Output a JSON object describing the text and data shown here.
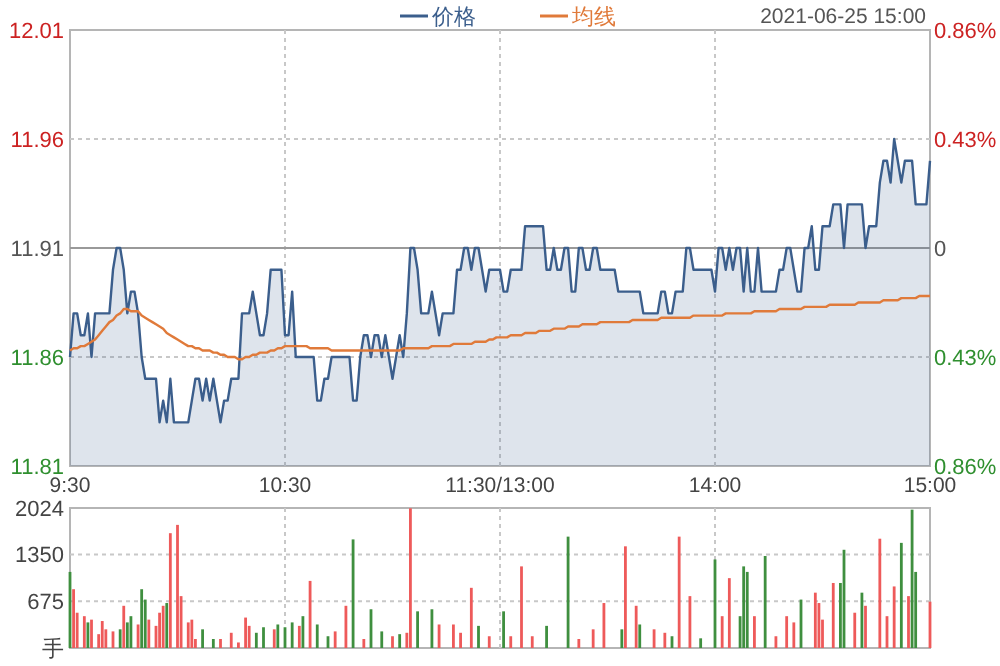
{
  "chart_data": [
    {
      "type": "line",
      "legend": "top",
      "grid": true,
      "categories": [
        "9:30",
        null,
        null,
        null,
        null,
        null,
        null,
        null,
        null,
        null,
        null,
        null,
        null,
        null,
        null,
        null,
        null,
        null,
        null,
        null,
        null,
        null,
        null,
        null,
        null,
        null,
        null,
        null,
        null,
        null,
        null,
        null,
        null,
        null,
        null,
        null,
        null,
        null,
        null,
        null,
        null,
        null,
        null,
        null,
        null,
        null,
        null,
        null,
        null,
        null,
        null,
        null,
        null,
        null,
        null,
        null,
        null,
        null,
        null,
        null,
        "10:30",
        null,
        null,
        null,
        null,
        null,
        null,
        null,
        null,
        null,
        null,
        null,
        null,
        null,
        null,
        null,
        null,
        null,
        null,
        null,
        null,
        null,
        null,
        null,
        null,
        null,
        null,
        null,
        null,
        null,
        null,
        null,
        null,
        null,
        null,
        null,
        null,
        null,
        null,
        null,
        null,
        null,
        null,
        null,
        null,
        null,
        null,
        null,
        null,
        null,
        null,
        null,
        null,
        null,
        null,
        null,
        null,
        null,
        null,
        null,
        "11:30/13:00",
        null,
        null,
        null,
        null,
        null,
        null,
        null,
        null,
        null,
        null,
        null,
        null,
        null,
        null,
        null,
        null,
        null,
        null,
        null,
        null,
        null,
        null,
        null,
        null,
        null,
        null,
        null,
        null,
        null,
        null,
        null,
        null,
        null,
        null,
        null,
        null,
        null,
        null,
        null,
        null,
        null,
        null,
        null,
        null,
        null,
        null,
        null,
        null,
        null,
        null,
        null,
        null,
        null,
        null,
        null,
        null,
        null,
        null,
        null,
        "14:00",
        null,
        null,
        null,
        null,
        null,
        null,
        null,
        null,
        null,
        null,
        null,
        null,
        null,
        null,
        null,
        null,
        null,
        null,
        null,
        null,
        null,
        null,
        null,
        null,
        null,
        null,
        null,
        null,
        null,
        null,
        null,
        null,
        null,
        null,
        null,
        null,
        null,
        null,
        null,
        null,
        null,
        null,
        null,
        null,
        null,
        null,
        null,
        null,
        null,
        null,
        null,
        null,
        null,
        null,
        null,
        null,
        null,
        null,
        null,
        "15:00"
      ],
      "ylim": [
        11.81,
        12.01
      ],
      "yticks": [
        11.81,
        11.86,
        11.91,
        11.96,
        12.01
      ],
      "y2lim": [
        -0.86,
        0.86
      ],
      "y2ticks": [
        {
          "value": -0.86,
          "label": "0.86%"
        },
        {
          "value": -0.43,
          "label": "0.43%"
        },
        {
          "value": 0,
          "label": "0"
        },
        {
          "value": 0.43,
          "label": "0.43%"
        },
        {
          "value": 0.86,
          "label": "0.86%"
        }
      ],
      "ref_lines": [
        {
          "axis": "y",
          "value": 11.91,
          "color": "#999999"
        }
      ],
      "annotations": [
        "2021-06-25 15:00"
      ],
      "series": [
        {
          "name": "价格",
          "type": "area",
          "color": "#3b5e8c",
          "values": [
            11.86,
            11.88,
            11.88,
            11.87,
            11.87,
            11.88,
            11.86,
            11.88,
            11.88,
            11.88,
            11.88,
            11.88,
            11.9,
            11.91,
            11.91,
            11.9,
            11.88,
            11.89,
            11.89,
            11.88,
            11.86,
            11.85,
            11.85,
            11.85,
            11.85,
            11.83,
            11.84,
            11.83,
            11.85,
            11.83,
            11.83,
            11.83,
            11.83,
            11.83,
            11.84,
            11.85,
            11.85,
            11.84,
            11.85,
            11.84,
            11.85,
            11.84,
            11.83,
            11.84,
            11.84,
            11.85,
            11.85,
            11.85,
            11.88,
            11.88,
            11.88,
            11.89,
            11.88,
            11.87,
            11.87,
            11.88,
            11.9,
            11.9,
            11.9,
            11.9,
            11.87,
            11.87,
            11.89,
            11.86,
            11.86,
            11.86,
            11.86,
            11.86,
            11.86,
            11.84,
            11.84,
            11.85,
            11.85,
            11.86,
            11.86,
            11.86,
            11.86,
            11.86,
            11.86,
            11.84,
            11.84,
            11.86,
            11.87,
            11.87,
            11.86,
            11.87,
            11.87,
            11.86,
            11.87,
            11.86,
            11.85,
            11.86,
            11.87,
            11.86,
            11.88,
            11.91,
            11.91,
            11.9,
            11.88,
            11.88,
            11.88,
            11.89,
            11.88,
            11.87,
            11.88,
            11.88,
            11.88,
            11.88,
            11.9,
            11.9,
            11.91,
            11.91,
            11.9,
            11.91,
            11.91,
            11.9,
            11.89,
            11.9,
            11.9,
            11.9,
            11.9,
            11.89,
            11.89,
            11.9,
            11.9,
            11.9,
            11.9,
            11.92,
            11.92,
            11.92,
            11.92,
            11.92,
            11.92,
            11.9,
            11.9,
            11.91,
            11.9,
            11.9,
            11.91,
            11.91,
            11.89,
            11.89,
            11.91,
            11.91,
            11.9,
            11.9,
            11.91,
            11.91,
            11.9,
            11.9,
            11.9,
            11.9,
            11.9,
            11.89,
            11.89,
            11.89,
            11.89,
            11.89,
            11.89,
            11.89,
            11.88,
            11.88,
            11.88,
            11.88,
            11.88,
            11.89,
            11.89,
            11.88,
            11.88,
            11.89,
            11.89,
            11.89,
            11.91,
            11.91,
            11.9,
            11.9,
            11.9,
            11.9,
            11.9,
            11.9,
            11.89,
            11.91,
            11.91,
            11.9,
            11.91,
            11.9,
            11.91,
            11.91,
            11.89,
            11.91,
            11.89,
            11.89,
            11.91,
            11.89,
            11.89,
            11.89,
            11.89,
            11.89,
            11.9,
            11.9,
            11.91,
            11.91,
            11.9,
            11.89,
            11.89,
            11.91,
            11.91,
            11.92,
            11.9,
            11.9,
            11.92,
            11.92,
            11.92,
            11.93,
            11.93,
            11.93,
            11.91,
            11.93,
            11.93,
            11.93,
            11.93,
            11.93,
            11.91,
            11.92,
            11.92,
            11.92,
            11.94,
            11.95,
            11.95,
            11.94,
            11.96,
            11.95,
            11.94,
            11.95,
            11.95,
            11.95,
            11.93,
            11.93,
            11.93,
            11.93,
            11.95
          ]
        },
        {
          "name": "均线",
          "color": "#e07a3a",
          "values": [
            11.863,
            11.864,
            11.864,
            11.865,
            11.865,
            11.866,
            11.867,
            11.868,
            11.87,
            11.872,
            11.874,
            11.876,
            11.877,
            11.879,
            11.88,
            11.882,
            11.882,
            11.881,
            11.881,
            11.881,
            11.879,
            11.878,
            11.877,
            11.876,
            11.875,
            11.874,
            11.873,
            11.871,
            11.87,
            11.869,
            11.868,
            11.867,
            11.866,
            11.865,
            11.865,
            11.864,
            11.864,
            11.863,
            11.863,
            11.863,
            11.862,
            11.862,
            11.861,
            11.861,
            11.86,
            11.86,
            11.86,
            11.859,
            11.859,
            11.86,
            11.86,
            11.861,
            11.861,
            11.862,
            11.862,
            11.862,
            11.863,
            11.863,
            11.864,
            11.864,
            11.865,
            11.865,
            11.865,
            11.865,
            11.865,
            11.865,
            11.865,
            11.864,
            11.864,
            11.864,
            11.864,
            11.864,
            11.864,
            11.863,
            11.863,
            11.863,
            11.863,
            11.863,
            11.863,
            11.863,
            11.863,
            11.863,
            11.863,
            11.863,
            11.863,
            11.863,
            11.863,
            11.863,
            11.863,
            11.863,
            11.863,
            11.863,
            11.863,
            11.864,
            11.864,
            11.864,
            11.864,
            11.864,
            11.864,
            11.864,
            11.864,
            11.865,
            11.865,
            11.865,
            11.865,
            11.865,
            11.865,
            11.866,
            11.866,
            11.866,
            11.866,
            11.866,
            11.866,
            11.867,
            11.867,
            11.867,
            11.867,
            11.868,
            11.868,
            11.869,
            11.869,
            11.869,
            11.869,
            11.87,
            11.87,
            11.87,
            11.87,
            11.871,
            11.871,
            11.871,
            11.871,
            11.872,
            11.872,
            11.872,
            11.872,
            11.873,
            11.873,
            11.873,
            11.873,
            11.874,
            11.874,
            11.874,
            11.874,
            11.875,
            11.875,
            11.875,
            11.875,
            11.875,
            11.876,
            11.876,
            11.876,
            11.876,
            11.876,
            11.876,
            11.876,
            11.876,
            11.876,
            11.877,
            11.877,
            11.877,
            11.877,
            11.877,
            11.877,
            11.877,
            11.877,
            11.878,
            11.878,
            11.878,
            11.878,
            11.878,
            11.878,
            11.878,
            11.878,
            11.878,
            11.879,
            11.879,
            11.879,
            11.879,
            11.879,
            11.879,
            11.879,
            11.879,
            11.879,
            11.88,
            11.88,
            11.88,
            11.88,
            11.88,
            11.88,
            11.88,
            11.88,
            11.881,
            11.881,
            11.881,
            11.881,
            11.881,
            11.881,
            11.881,
            11.882,
            11.882,
            11.882,
            11.882,
            11.882,
            11.882,
            11.882,
            11.883,
            11.883,
            11.883,
            11.883,
            11.883,
            11.883,
            11.883,
            11.884,
            11.884,
            11.884,
            11.884,
            11.884,
            11.884,
            11.884,
            11.884,
            11.885,
            11.885,
            11.885,
            11.885,
            11.885,
            11.885,
            11.885,
            11.886,
            11.886,
            11.886,
            11.886,
            11.886,
            11.887,
            11.887,
            11.887,
            11.887,
            11.887,
            11.888,
            11.888,
            11.888,
            11.888
          ]
        }
      ]
    },
    {
      "type": "bar",
      "grid": true,
      "tick_labels": "y",
      "categories": [
        null,
        null,
        null,
        null,
        null,
        null,
        null,
        null,
        null,
        null,
        null,
        null,
        null,
        null,
        null,
        null,
        null,
        null,
        null,
        null,
        null,
        null,
        null,
        null,
        null,
        null,
        null,
        null,
        null,
        null,
        null,
        null,
        null,
        null,
        null,
        null,
        null,
        null,
        null,
        null,
        null,
        null,
        null,
        null,
        null,
        null,
        null,
        null,
        null,
        null,
        null,
        null,
        null,
        null,
        null,
        null,
        null,
        null,
        null,
        null,
        null,
        null,
        null,
        null,
        null,
        null,
        null,
        null,
        null,
        null,
        null,
        null,
        null,
        null,
        null,
        null,
        null,
        null,
        null,
        null,
        null,
        null,
        null,
        null,
        null,
        null,
        null,
        null,
        null,
        null,
        null,
        null,
        null,
        null,
        null,
        null,
        null,
        null,
        null,
        null,
        null,
        null,
        null,
        null,
        null,
        null,
        null,
        null,
        null,
        null,
        null,
        null,
        null,
        null,
        null,
        null,
        null,
        null,
        null,
        null,
        null,
        null,
        null,
        null,
        null,
        null,
        null,
        null,
        null,
        null,
        null,
        null,
        null,
        null,
        null,
        null,
        null,
        null,
        null,
        null,
        null,
        null,
        null,
        null,
        null,
        null,
        null,
        null,
        null,
        null,
        null,
        null,
        null,
        null,
        null,
        null,
        null,
        null,
        null,
        null,
        null,
        null,
        null,
        null,
        null,
        null,
        null,
        null,
        null,
        null,
        null,
        null,
        null,
        null,
        null,
        null,
        null,
        null,
        null,
        null,
        null,
        null,
        null,
        null,
        null,
        null,
        null,
        null,
        null,
        null,
        null,
        null,
        null,
        null,
        null,
        null,
        null,
        null,
        null,
        null,
        null,
        null,
        null,
        null,
        null,
        null,
        null,
        null,
        null,
        null,
        null,
        null,
        null,
        null,
        null,
        null,
        null,
        null,
        null,
        null,
        null,
        null,
        null,
        null,
        null,
        null,
        null,
        null,
        null,
        null,
        null,
        null,
        null,
        null,
        null,
        null,
        null,
        null,
        null,
        null,
        null
      ],
      "ylim": [
        0,
        2024
      ],
      "yticks": [
        {
          "value": 0,
          "label": "手"
        },
        675,
        1350,
        2024
      ],
      "values": [
        1100,
        850,
        510,
        null,
        460,
        370,
        410,
        null,
        200,
        390,
        270,
        null,
        240,
        null,
        270,
        610,
        370,
        460,
        null,
        340,
        850,
        700,
        410,
        null,
        320,
        510,
        610,
        650,
        1660,
        null,
        1780,
        750,
        null,
        370,
        410,
        130,
        null,
        270,
        null,
        null,
        130,
        null,
        130,
        null,
        null,
        220,
        null,
        80,
        null,
        440,
        320,
        null,
        220,
        null,
        300,
        null,
        null,
        270,
        340,
        null,
        300,
        null,
        370,
        null,
        320,
        460,
        null,
        970,
        null,
        340,
        null,
        null,
        170,
        null,
        240,
        null,
        null,
        610,
        null,
        1570,
        null,
        null,
        130,
        null,
        560,
        null,
        null,
        240,
        null,
        null,
        170,
        null,
        200,
        null,
        220,
        2020,
        null,
        530,
        null,
        null,
        null,
        560,
        null,
        340,
        null,
        null,
        null,
        340,
        null,
        220,
        null,
        null,
        870,
        null,
        320,
        null,
        null,
        170,
        null,
        null,
        null,
        530,
        null,
        170,
        null,
        null,
        1180,
        null,
        null,
        170,
        null,
        null,
        null,
        320,
        null,
        null,
        null,
        null,
        null,
        1610,
        null,
        null,
        130,
        null,
        null,
        null,
        270,
        null,
        null,
        650,
        null,
        null,
        null,
        null,
        270,
        1470,
        null,
        null,
        610,
        340,
        null,
        null,
        null,
        270,
        null,
        null,
        220,
        null,
        170,
        null,
        1610,
        null,
        null,
        750,
        null,
        null,
        140,
        null,
        null,
        null,
        1280,
        null,
        460,
        null,
        1010,
        null,
        null,
        460,
        1180,
        1100,
        null,
        460,
        null,
        null,
        1330,
        null,
        null,
        170,
        null,
        null,
        460,
        null,
        370,
        null,
        700,
        null,
        null,
        null,
        800,
        650,
        410,
        null,
        null,
        940,
        null,
        940,
        1420,
        null,
        null,
        510,
        null,
        800,
        610,
        null,
        null,
        null,
        1580,
        null,
        460,
        null,
        890,
        null,
        1520,
        null,
        750,
        2000,
        1100,
        null,
        null,
        null,
        670
      ],
      "colors": [
        "#3f8f3f",
        "#ee5a5a",
        "#ee5a5a",
        null,
        "#ee5a5a",
        "#3f8f3f",
        "#ee5a5a",
        null,
        "#ee5a5a",
        "#ee5a5a",
        "#ee5a5a",
        null,
        "#ee5a5a",
        null,
        "#3f8f3f",
        "#ee5a5a",
        "#3f8f3f",
        "#3f8f3f",
        null,
        "#ee5a5a",
        "#3f8f3f",
        "#3f8f3f",
        "#ee5a5a",
        null,
        "#ee5a5a",
        "#ee5a5a",
        "#ee5a5a",
        "#3f8f3f",
        "#ee5a5a",
        null,
        "#ee5a5a",
        "#ee5a5a",
        null,
        "#ee5a5a",
        "#ee5a5a",
        "#ee5a5a",
        null,
        "#3f8f3f",
        null,
        null,
        "#3f8f3f",
        null,
        "#ee5a5a",
        null,
        null,
        "#ee5a5a",
        null,
        "#ee5a5a",
        null,
        "#ee5a5a",
        "#ee5a5a",
        null,
        "#3f8f3f",
        null,
        "#3f8f3f",
        null,
        null,
        "#ee5a5a",
        "#3f8f3f",
        null,
        "#3f8f3f",
        null,
        "#3f8f3f",
        null,
        "#ee5a5a",
        "#3f8f3f",
        null,
        "#ee5a5a",
        null,
        "#3f8f3f",
        null,
        null,
        "#3f8f3f",
        null,
        "#ee5a5a",
        null,
        null,
        "#ee5a5a",
        null,
        "#3f8f3f",
        null,
        null,
        "#ee5a5a",
        null,
        "#3f8f3f",
        null,
        null,
        "#3f8f3f",
        null,
        null,
        "#ee5a5a",
        null,
        "#3f8f3f",
        null,
        "#ee5a5a",
        "#ee5a5a",
        null,
        "#3f8f3f",
        null,
        null,
        null,
        "#3f8f3f",
        null,
        "#ee5a5a",
        null,
        null,
        null,
        "#ee5a5a",
        null,
        "#ee5a5a",
        null,
        null,
        "#ee5a5a",
        null,
        "#3f8f3f",
        null,
        null,
        "#ee5a5a",
        null,
        null,
        null,
        "#3f8f3f",
        null,
        "#ee5a5a",
        null,
        null,
        "#ee5a5a",
        null,
        null,
        "#ee5a5a",
        null,
        null,
        null,
        "#3f8f3f",
        null,
        null,
        null,
        null,
        null,
        "#3f8f3f",
        null,
        null,
        "#ee5a5a",
        null,
        null,
        null,
        "#ee5a5a",
        null,
        null,
        "#ee5a5a",
        null,
        null,
        null,
        null,
        "#3f8f3f",
        "#ee5a5a",
        null,
        null,
        "#ee5a5a",
        "#3f8f3f",
        null,
        null,
        null,
        "#ee5a5a",
        null,
        null,
        "#ee5a5a",
        null,
        "#3f8f3f",
        null,
        "#ee5a5a",
        null,
        null,
        "#ee5a5a",
        null,
        null,
        "#3f8f3f",
        null,
        null,
        null,
        "#3f8f3f",
        null,
        "#ee5a5a",
        null,
        "#ee5a5a",
        null,
        null,
        "#3f8f3f",
        "#3f8f3f",
        "#3f8f3f",
        null,
        "#ee5a5a",
        null,
        null,
        "#3f8f3f",
        null,
        null,
        "#ee5a5a",
        null,
        null,
        "#ee5a5a",
        null,
        "#ee5a5a",
        null,
        "#3f8f3f",
        null,
        null,
        null,
        "#ee5a5a",
        "#ee5a5a",
        "#ee5a5a",
        null,
        null,
        "#ee5a5a",
        null,
        "#3f8f3f",
        "#3f8f3f",
        null,
        null,
        "#ee5a5a",
        null,
        "#3f8f3f",
        "#ee5a5a",
        null,
        null,
        null,
        "#ee5a5a",
        null,
        "#ee5a5a",
        null,
        "#ee5a5a",
        null,
        "#3f8f3f",
        null,
        "#ee5a5a",
        "#3f8f3f",
        "#3f8f3f",
        null,
        null,
        null,
        "#ee5a5a"
      ]
    }
  ]
}
